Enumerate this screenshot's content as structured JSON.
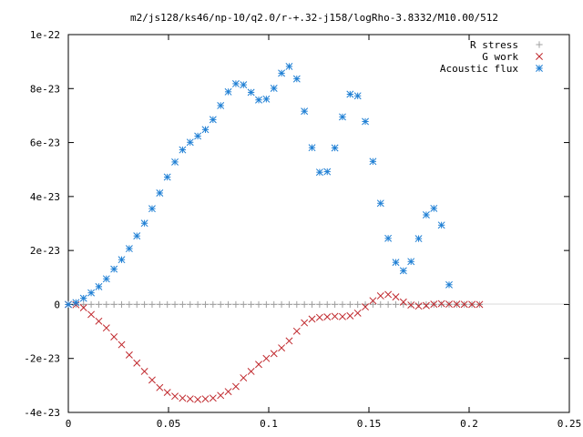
{
  "chart_data": {
    "type": "scatter",
    "title": "m2/js128/ks46/np-10/q2.0/r-+.32-j158/logRho-3.8332/M10.00/512",
    "xlabel": "",
    "ylabel": "",
    "xlim": [
      0,
      0.25
    ],
    "ylim": [
      -4e-23,
      1e-22
    ],
    "xticks": [
      0,
      0.05,
      0.1,
      0.15,
      0.2,
      0.25
    ],
    "xtick_labels": [
      "0",
      "0.05",
      "0.1",
      "0.15",
      "0.2",
      "0.25"
    ],
    "yticks": [
      -4e-23,
      -2e-23,
      0,
      2e-23,
      4e-23,
      6e-23,
      8e-23,
      1e-22
    ],
    "ytick_labels": [
      "-4e-23",
      "-2e-23",
      "0",
      "2e-23",
      "4e-23",
      "6e-23",
      "8e-23",
      "1e-22"
    ],
    "grid": false,
    "legend_position": "top-right",
    "x": [
      0.0,
      0.0038,
      0.0076,
      0.0114,
      0.0152,
      0.019,
      0.0228,
      0.0266,
      0.0304,
      0.0342,
      0.038,
      0.0418,
      0.0456,
      0.0494,
      0.0532,
      0.057,
      0.0608,
      0.0646,
      0.0684,
      0.0722,
      0.076,
      0.0798,
      0.0836,
      0.0874,
      0.0912,
      0.095,
      0.0988,
      0.1026,
      0.1064,
      0.1102,
      0.114,
      0.1178,
      0.1216,
      0.1254,
      0.1292,
      0.133,
      0.1368,
      0.1406,
      0.1444,
      0.1482,
      0.152,
      0.1558,
      0.1596,
      0.1634,
      0.1672,
      0.171,
      0.1748,
      0.1786,
      0.1824,
      0.1862,
      0.19,
      0.1938,
      0.1976,
      0.2014,
      0.2052
    ],
    "series": [
      {
        "name": "R stress",
        "marker": "plus",
        "color": "#a0a0a0",
        "values": [
          0,
          0,
          0,
          0,
          0,
          0,
          0,
          0,
          0,
          0,
          0,
          0,
          0,
          0,
          0,
          0,
          0,
          0,
          0,
          0,
          0,
          0,
          0,
          0,
          0,
          0,
          0,
          0,
          0,
          0,
          0,
          0,
          0,
          0,
          0,
          0,
          0,
          0,
          0,
          0,
          0,
          0,
          0,
          0,
          0,
          0,
          0,
          0,
          0,
          0,
          0,
          0,
          0,
          0,
          0
        ]
      },
      {
        "name": "G work",
        "marker": "cross",
        "color": "#c0282d",
        "values": [
          0,
          -1e-25,
          -1.2e-24,
          -3.7e-24,
          -6.2e-24,
          -8.7e-24,
          -1.2e-23,
          -1.49e-23,
          -1.87e-23,
          -2.17e-23,
          -2.48e-23,
          -2.8e-23,
          -3.08e-23,
          -3.26e-23,
          -3.4e-23,
          -3.47e-23,
          -3.5e-23,
          -3.52e-23,
          -3.5e-23,
          -3.47e-23,
          -3.37e-23,
          -3.23e-23,
          -3.04e-23,
          -2.72e-23,
          -2.48e-23,
          -2.22e-23,
          -2e-23,
          -1.82e-23,
          -1.61e-23,
          -1.35e-23,
          -9.9e-24,
          -6.8e-24,
          -5.4e-24,
          -4.8e-24,
          -4.6e-24,
          -4.4e-24,
          -4.5e-24,
          -4.2e-24,
          -3.2e-24,
          -9e-25,
          1.4e-24,
          3.2e-24,
          3.7e-24,
          2.8e-24,
          9e-25,
          -2e-25,
          -6e-25,
          -4e-25,
          1e-25,
          3e-25,
          1.2e-25,
          1e-25,
          5e-26,
          2e-26,
          0
        ]
      },
      {
        "name": "Acoustic flux",
        "marker": "star",
        "color": "#1f7fd4",
        "values": [
          0,
          7e-25,
          2.3e-24,
          4.3e-24,
          6.6e-24,
          9.5e-24,
          1.31e-23,
          1.66e-23,
          2.07e-23,
          2.54e-23,
          3.01e-23,
          3.55e-23,
          4.13e-23,
          4.72e-23,
          5.28e-23,
          5.73e-23,
          6.01e-23,
          6.24e-23,
          6.48e-23,
          6.85e-23,
          7.37e-23,
          7.88e-23,
          8.18e-23,
          8.14e-23,
          7.86e-23,
          7.58e-23,
          7.61e-23,
          8.01e-23,
          8.57e-23,
          8.82e-23,
          8.36e-23,
          7.16e-23,
          5.81e-23,
          4.9e-23,
          4.92e-23,
          5.8e-23,
          6.95e-23,
          7.79e-23,
          7.73e-23,
          6.78e-23,
          5.3e-23,
          3.75e-23,
          2.45e-23,
          1.56e-23,
          1.25e-23,
          1.59e-23,
          2.44e-23,
          3.32e-23,
          3.56e-23,
          2.94e-23,
          7.3e-24,
          null,
          null,
          null,
          null
        ]
      }
    ]
  }
}
